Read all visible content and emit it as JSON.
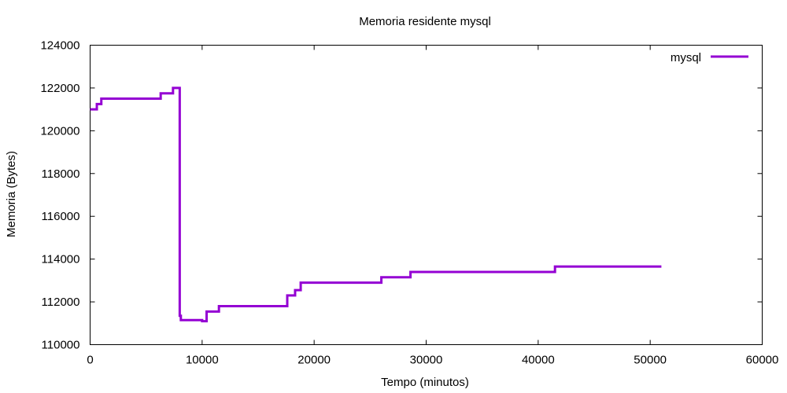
{
  "chart_data": {
    "type": "line",
    "title": "Memoria residente mysql",
    "xlabel": "Tempo (minutos)",
    "ylabel": "Memoria (Bytes)",
    "xlim": [
      0,
      60000
    ],
    "ylim": [
      110000,
      124000
    ],
    "x_ticks": [
      0,
      10000,
      20000,
      30000,
      40000,
      50000,
      60000
    ],
    "y_ticks": [
      110000,
      112000,
      114000,
      116000,
      118000,
      120000,
      122000,
      124000
    ],
    "x_tick_labels": [
      "0",
      "10000",
      "20000",
      "30000",
      "40000",
      "50000",
      "60000"
    ],
    "y_tick_labels": [
      "110000",
      "112000",
      "114000",
      "116000",
      "118000",
      "120000",
      "122000",
      "124000"
    ],
    "grid": false,
    "legend_position": "top-right",
    "step": "post",
    "series": [
      {
        "name": "mysql",
        "color": "#9400d3",
        "points": [
          [
            0,
            121000
          ],
          [
            600,
            121250
          ],
          [
            1000,
            121500
          ],
          [
            6300,
            121750
          ],
          [
            7400,
            122000
          ],
          [
            8000,
            111350
          ],
          [
            8100,
            111150
          ],
          [
            10000,
            111100
          ],
          [
            10400,
            111550
          ],
          [
            11500,
            111800
          ],
          [
            17600,
            112300
          ],
          [
            18300,
            112550
          ],
          [
            18800,
            112900
          ],
          [
            26000,
            113150
          ],
          [
            28600,
            113400
          ],
          [
            41500,
            113650
          ],
          [
            51000,
            113650
          ]
        ]
      }
    ]
  }
}
